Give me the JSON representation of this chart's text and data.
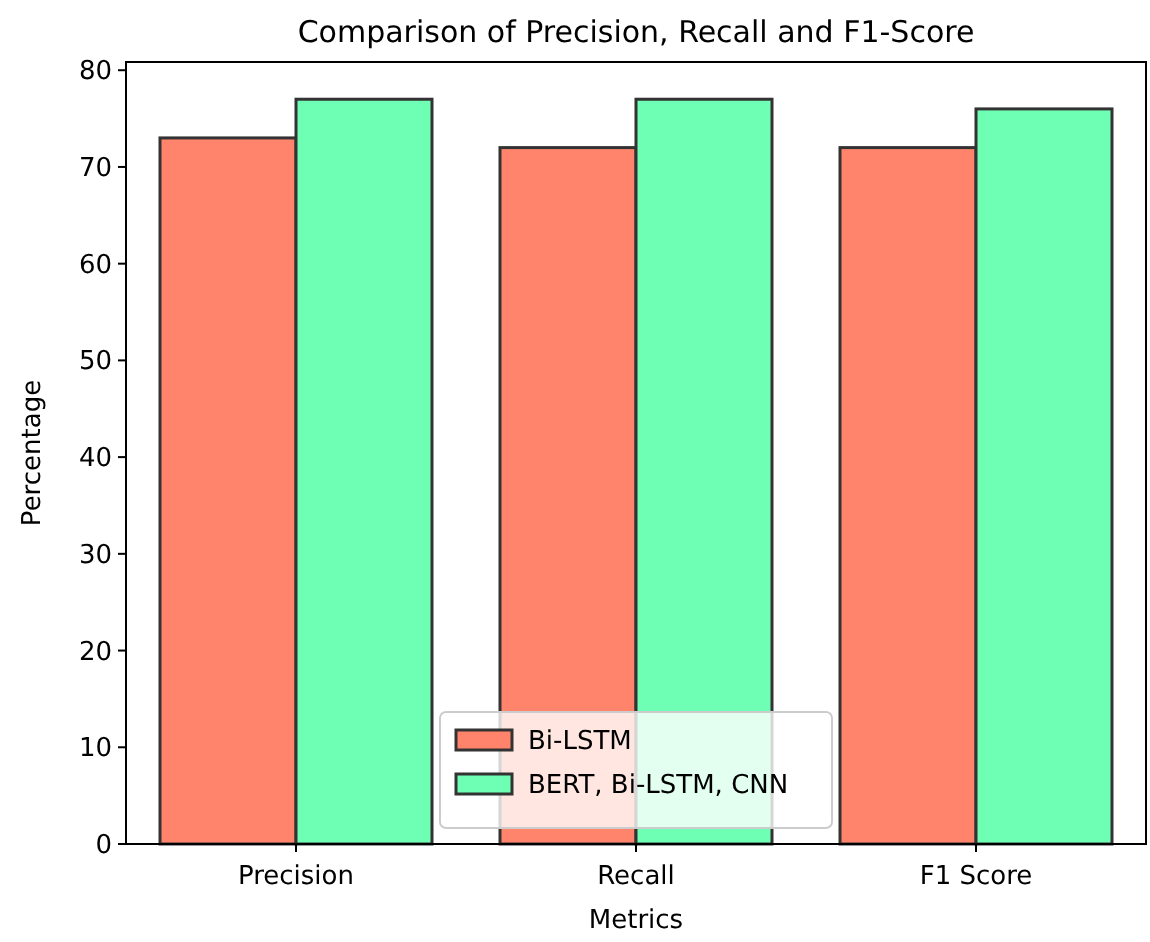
{
  "chart_data": {
    "type": "bar",
    "title": "Comparison of Precision, Recall and F1-Score",
    "xlabel": "Metrics",
    "ylabel": "Percentage",
    "categories": [
      "Precision",
      "Recall",
      "F1 Score"
    ],
    "series": [
      {
        "name": "Bi-LSTM",
        "color": "#ff846b",
        "values": [
          73,
          72,
          72
        ]
      },
      {
        "name": "BERT, Bi-LSTM, CNN",
        "color": "#6fffb4",
        "values": [
          77,
          77,
          76
        ]
      }
    ],
    "ylim": [
      0,
      80.85
    ],
    "yticks": [
      0,
      10,
      20,
      30,
      40,
      50,
      60,
      70,
      80
    ],
    "legend": "bottom",
    "grid": false
  }
}
